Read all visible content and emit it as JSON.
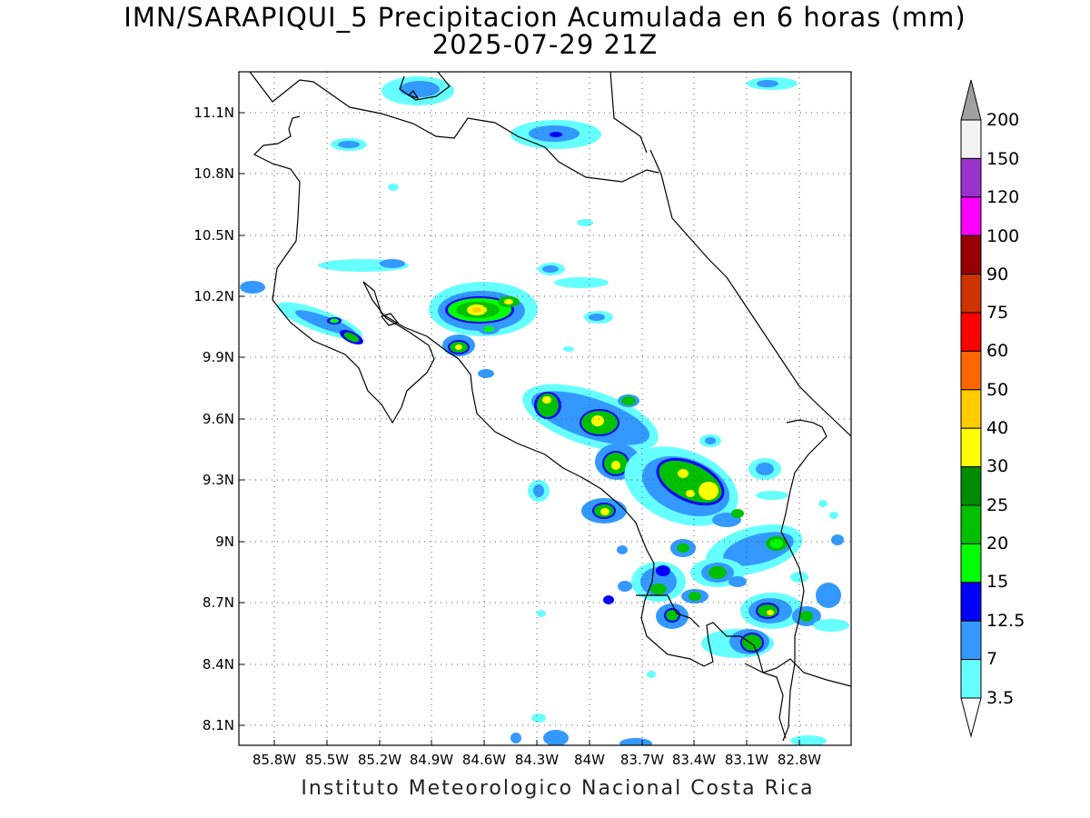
{
  "title": "IMN/SARAPIQUI_5 Precipitacion Acumulada en 6 horas (mm)",
  "subtitle": "2025-07-29 21Z",
  "footer": "Instituto Meteorologico Nacional Costa Rica",
  "map": {
    "lon_range": [
      -86.0,
      -83.0
    ],
    "lat_range": [
      8.0,
      11.3
    ],
    "grid": "dotted",
    "lat_labels": [
      "11.1N",
      "10.8N",
      "10.5N",
      "10.2N",
      "9.9N",
      "9.6N",
      "9.3N",
      "9N",
      "8.7N",
      "8.4N",
      "8.1N"
    ],
    "lon_labels": [
      "85.8W",
      "85.5W",
      "85.2W",
      "84.9W",
      "84.6W",
      "84.3W",
      "84W",
      "83.7W",
      "83.4W",
      "83.1W",
      "82.8W"
    ]
  },
  "colorbar": {
    "labels": [
      "200",
      "150",
      "120",
      "100",
      "90",
      "75",
      "60",
      "50",
      "40",
      "30",
      "25",
      "20",
      "15",
      "12.5",
      "7",
      "3.5"
    ],
    "colors": [
      "#a0a0a0",
      "#f2f2f2",
      "#9933cc",
      "#ff00ff",
      "#990000",
      "#cc3300",
      "#ff0000",
      "#ff6600",
      "#ffcc00",
      "#ffff00",
      "#008c00",
      "#00c000",
      "#00ff00",
      "#0000ff",
      "#3399ff",
      "#66ffff",
      "#ffffff"
    ]
  },
  "precip_colors": {
    "c3_5": "#66ffff",
    "c7": "#3399ff",
    "c12_5": "#0000ff",
    "c15": "#00ff00",
    "c20": "#00c000",
    "c25": "#008c00",
    "c30": "#ffff00",
    "c40": "#ffcc00"
  }
}
